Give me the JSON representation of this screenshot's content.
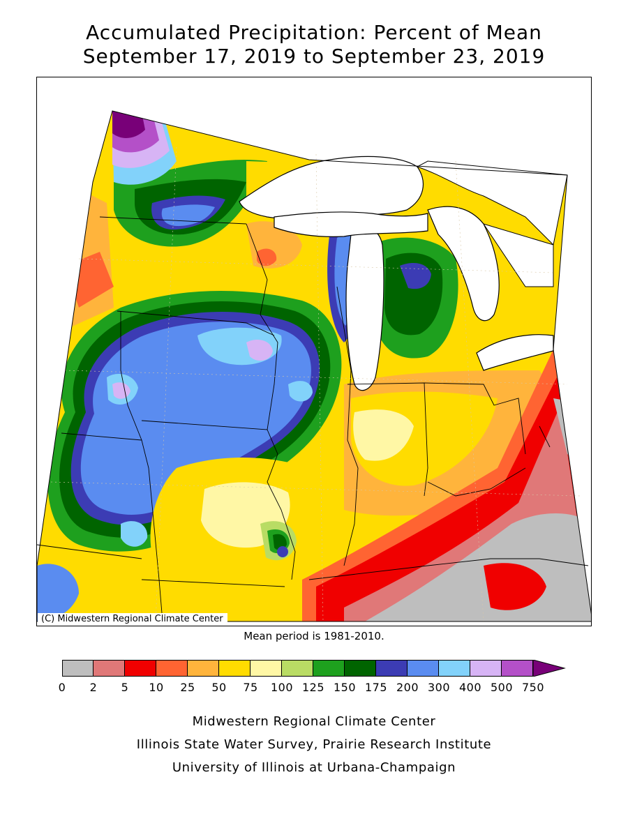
{
  "title": {
    "line1": "Accumulated Precipitation: Percent of Mean",
    "line2": "September 17, 2019 to September 23, 2019"
  },
  "map": {
    "copyright": "(C) Midwestern Regional Climate Center",
    "note": "Mean period is 1981-2010."
  },
  "legend": {
    "labels": [
      "0",
      "2",
      "5",
      "10",
      "25",
      "50",
      "75",
      "100",
      "125",
      "150",
      "175",
      "200",
      "300",
      "400",
      "500",
      "750"
    ],
    "colors": [
      "#bebebe",
      "#e07878",
      "#f00000",
      "#ff6432",
      "#ffb43c",
      "#ffdc00",
      "#fff7a5",
      "#b9dc64",
      "#1ea01e",
      "#006400",
      "#3c3cb4",
      "#5a8cf0",
      "#82d2fa",
      "#d7b4f5",
      "#b450c8",
      "#780078"
    ]
  },
  "credits": [
    "Midwestern Regional Climate Center",
    "Illinois State Water Survey, Prairie Research Institute",
    "University of Illinois at Urbana-Champaign"
  ]
}
